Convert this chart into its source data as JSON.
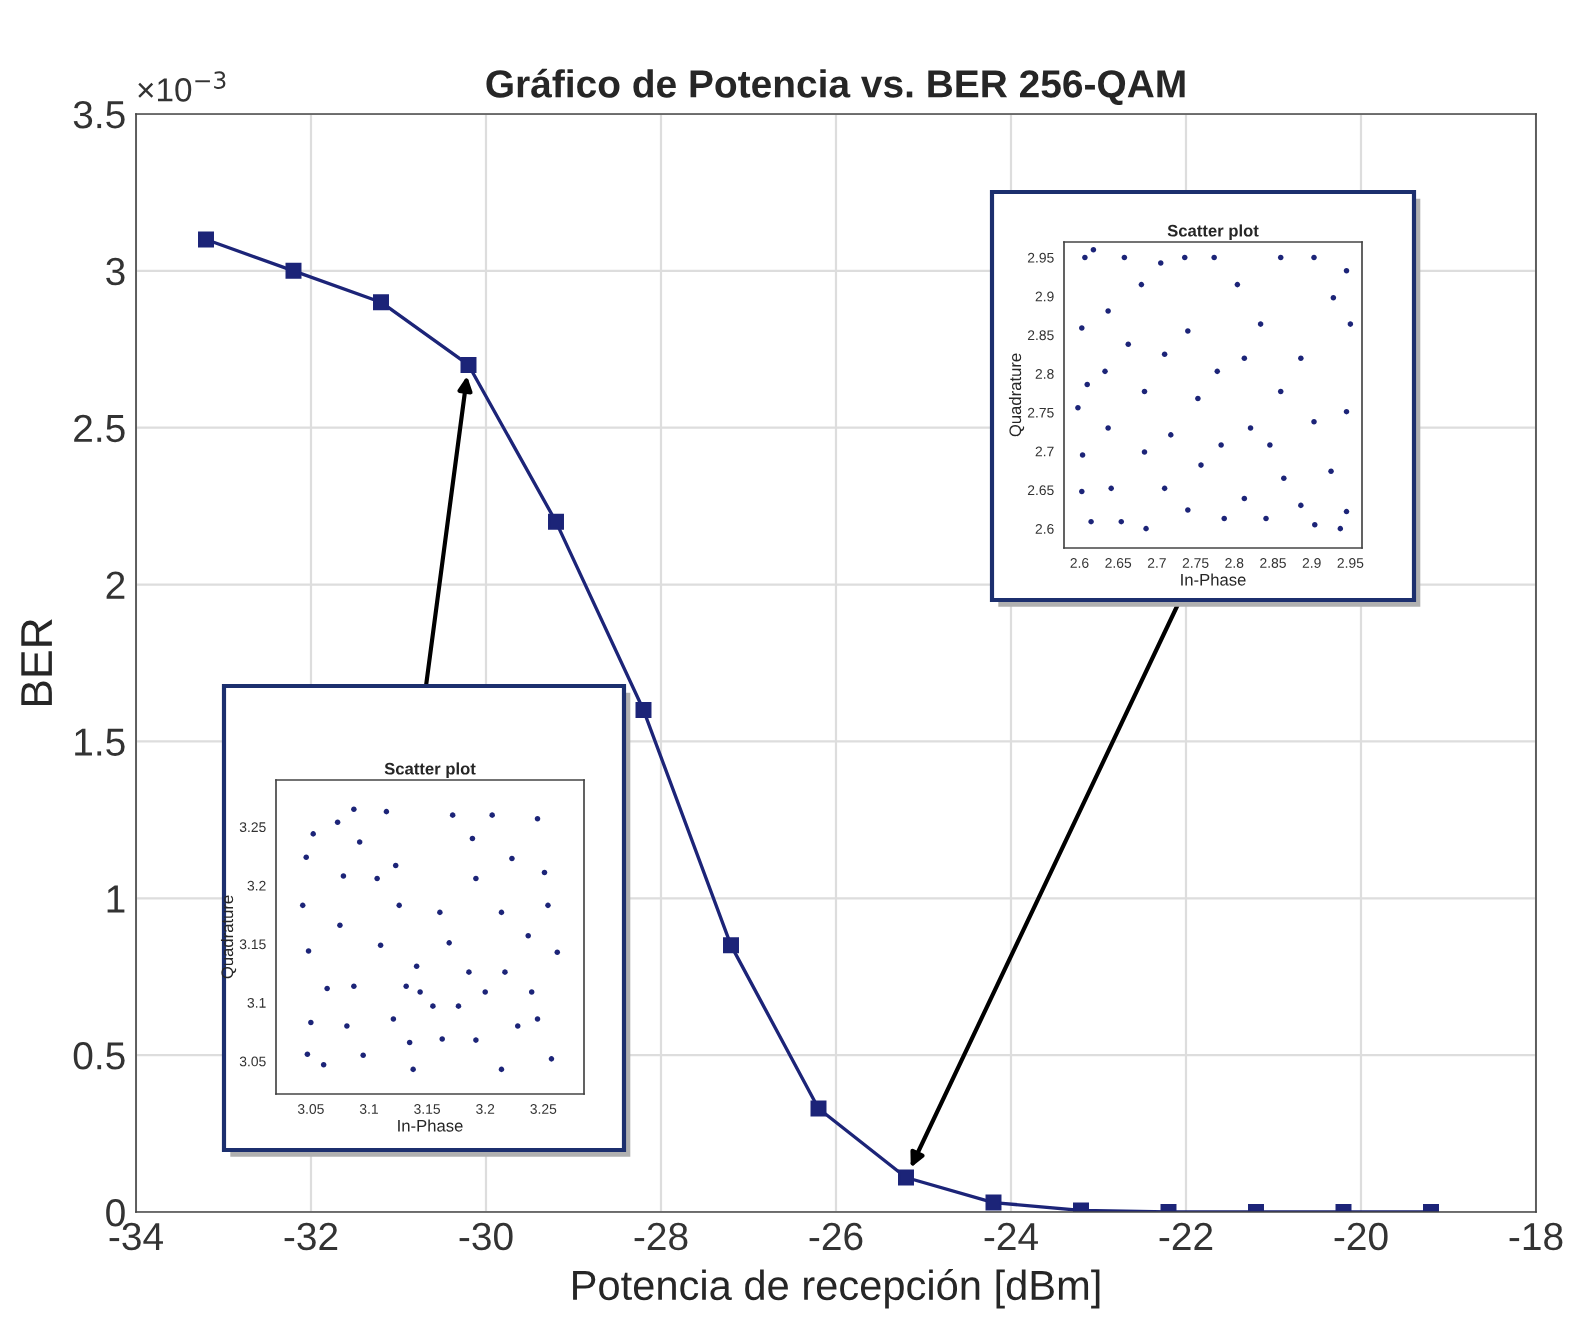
{
  "chart_data": [
    {
      "type": "line",
      "title": "Gráfico de Potencia vs. BER 256-QAM",
      "xlabel": "Potencia de recepción [dBm]",
      "ylabel": "BER",
      "annotations": [
        "×10$^{−3}$"
      ],
      "x": [
        -33.2,
        -32.2,
        -31.2,
        -30.2,
        -29.2,
        -28.2,
        -27.2,
        -26.2,
        -25.2,
        -24.2,
        -23.2,
        -22.2,
        -21.2,
        -20.2,
        -19.2
      ],
      "series": [
        {
          "color": "#1c2478",
          "values": [
            3.1,
            3.0,
            2.9,
            2.7,
            2.2,
            1.6,
            0.85,
            0.33,
            0.11,
            0.03,
            0.005,
            0,
            0,
            0,
            0
          ]
        }
      ],
      "marker": "square",
      "line_style": "solid",
      "grid": true,
      "xlim": [
        -34,
        -18
      ],
      "ylim": [
        0,
        3.5
      ],
      "xticks": [
        -34,
        -32,
        -30,
        -28,
        -26,
        -24,
        -22,
        -20,
        -18
      ],
      "yticks": [
        0,
        0.5,
        1,
        1.5,
        2,
        2.5,
        3,
        3.5
      ]
    },
    {
      "type": "scatter",
      "title": "Scatter plot",
      "xlabel": "In-Phase",
      "ylabel": "Quadrature",
      "marker": "circle",
      "x": [
        3.046,
        3.052,
        3.043,
        3.048,
        3.047,
        3.061,
        3.05,
        3.073,
        3.087,
        3.092,
        3.078,
        3.075,
        3.064,
        3.087,
        3.081,
        3.095,
        3.107,
        3.11,
        3.115,
        3.123,
        3.126,
        3.132,
        3.121,
        3.135,
        3.138,
        3.141,
        3.144,
        3.155,
        3.161,
        3.169,
        3.172,
        3.163,
        3.177,
        3.189,
        3.192,
        3.186,
        3.192,
        3.2,
        3.206,
        3.214,
        3.217,
        3.214,
        3.223,
        3.228,
        3.237,
        3.245,
        3.251,
        3.254,
        3.245,
        3.257,
        3.262,
        3.24
      ],
      "series": [
        {
          "color": "#1c2478",
          "values": [
            3.224,
            3.244,
            3.183,
            3.144,
            3.056,
            3.047,
            3.083,
            3.254,
            3.265,
            3.237,
            3.208,
            3.166,
            3.112,
            3.114,
            3.08,
            3.055,
            3.206,
            3.149,
            3.263,
            3.217,
            3.183,
            3.114,
            3.086,
            3.066,
            3.043,
            3.131,
            3.109,
            3.097,
            3.177,
            3.151,
            3.26,
            3.069,
            3.097,
            3.24,
            3.206,
            3.126,
            3.068,
            3.109,
            3.26,
            3.177,
            3.126,
            3.043,
            3.223,
            3.08,
            3.157,
            3.257,
            3.211,
            3.183,
            3.086,
            3.052,
            3.143,
            3.109
          ]
        }
      ],
      "xlim": [
        3.02,
        3.285
      ],
      "ylim": [
        3.022,
        3.29
      ],
      "xticks": [
        3.05,
        3.1,
        3.15,
        3.2,
        3.25
      ],
      "yticks": [
        3.05,
        3.1,
        3.15,
        3.2,
        3.25
      ]
    },
    {
      "type": "scatter",
      "title": "Scatter plot",
      "xlabel": "In-Phase",
      "ylabel": "Quadrature",
      "marker": "circle",
      "x": [
        2.607,
        2.618,
        2.603,
        2.61,
        2.598,
        2.604,
        2.603,
        2.615,
        2.637,
        2.633,
        2.637,
        2.641,
        2.658,
        2.663,
        2.654,
        2.68,
        2.684,
        2.684,
        2.686,
        2.705,
        2.71,
        2.71,
        2.718,
        2.736,
        2.74,
        2.74,
        2.753,
        2.757,
        2.774,
        2.778,
        2.783,
        2.787,
        2.804,
        2.813,
        2.821,
        2.813,
        2.834,
        2.846,
        2.841,
        2.86,
        2.86,
        2.864,
        2.886,
        2.886,
        2.903,
        2.903,
        2.904,
        2.928,
        2.925,
        2.945,
        2.95,
        2.945,
        2.945,
        2.937
      ],
      "series": [
        {
          "color": "#1c2478",
          "values": [
            2.95,
            2.96,
            2.859,
            2.786,
            2.756,
            2.695,
            2.648,
            2.609,
            2.881,
            2.803,
            2.73,
            2.652,
            2.95,
            2.838,
            2.609,
            2.915,
            2.777,
            2.699,
            2.6,
            2.943,
            2.825,
            2.652,
            2.721,
            2.95,
            2.855,
            2.624,
            2.768,
            2.682,
            2.95,
            2.803,
            2.708,
            2.613,
            2.915,
            2.82,
            2.73,
            2.639,
            2.864,
            2.708,
            2.613,
            2.95,
            2.777,
            2.665,
            2.82,
            2.63,
            2.95,
            2.738,
            2.605,
            2.898,
            2.674,
            2.933,
            2.864,
            2.751,
            2.622,
            2.6
          ]
        }
      ],
      "xlim": [
        2.58,
        2.965
      ],
      "ylim": [
        2.575,
        2.97
      ],
      "xticks": [
        2.6,
        2.65,
        2.7,
        2.75,
        2.8,
        2.85,
        2.9,
        2.95
      ],
      "yticks": [
        2.6,
        2.65,
        2.7,
        2.75,
        2.8,
        2.85,
        2.9,
        2.95
      ]
    }
  ]
}
